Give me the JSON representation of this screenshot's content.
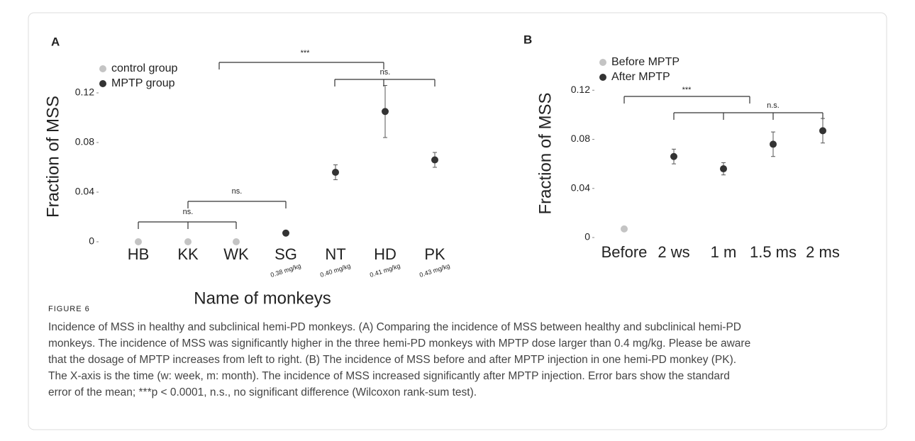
{
  "figure_label": "FIGURE 6",
  "caption": [
    "Incidence of MSS in healthy and subclinical hemi-PD monkeys. (A) Comparing the incidence of MSS between healthy and subclinical hemi-PD",
    "monkeys. The incidence of MSS was significantly higher in the three hemi-PD monkeys with MPTP dose larger than 0.4 mg/kg. Please be aware",
    "that the dosage of MPTP increases from left to right. (B) The incidence of MSS before and after MPTP injection in one hemi-PD monkey (PK).",
    "The X-axis is the time (w: week, m: month). The incidence of MSS increased significantly after MPTP injection. Error bars show the standard",
    "error of the mean; ***p < 0.0001, n.s., no significant difference (Wilcoxon rank-sum test)."
  ],
  "chart_data": [
    {
      "type": "scatter",
      "panel": "A",
      "y_label": "Fraction of MSS",
      "x_label": "Name of monkeys",
      "categories": [
        "HB",
        "KK",
        "WK",
        "SG",
        "NT",
        "HD",
        "PK"
      ],
      "dose_labels": [
        null,
        null,
        null,
        "0.38 mg/kg",
        "0.40 mg/kg",
        "0.41 mg/kg",
        "0.43 mg/kg"
      ],
      "series": [
        {
          "name": "control group",
          "color": "#c4c4c4",
          "values": [
            0,
            0,
            0,
            null,
            null,
            null,
            null
          ],
          "errors": [
            null,
            null,
            null,
            null,
            null,
            null,
            null
          ]
        },
        {
          "name": "MPTP group",
          "color": "#333333",
          "values": [
            null,
            null,
            null,
            0.007,
            0.056,
            0.105,
            0.066
          ],
          "errors": [
            null,
            null,
            null,
            0.001,
            0.006,
            0.021,
            0.006
          ]
        }
      ],
      "annotations": [
        "***",
        "ns.",
        "ns.",
        "ns."
      ],
      "ylim": [
        0,
        0.16
      ],
      "yticks": [
        0,
        0.04,
        0.08,
        0.12
      ],
      "legend": "upper left"
    },
    {
      "type": "scatter",
      "panel": "B",
      "y_label": "Fraction of MSS",
      "categories": [
        "Before",
        "2 ws",
        "1 m",
        "1.5 ms",
        "2 ms"
      ],
      "series": [
        {
          "name": "Before MPTP",
          "color": "#c4c4c4",
          "values": [
            0.007,
            null,
            null,
            null,
            null
          ],
          "errors": [
            0.001,
            null,
            null,
            null,
            null
          ]
        },
        {
          "name": "After MPTP",
          "color": "#333333",
          "values": [
            null,
            0.066,
            0.056,
            0.076,
            0.087
          ],
          "errors": [
            null,
            0.006,
            0.005,
            0.01,
            0.01
          ]
        }
      ],
      "annotations": [
        "***",
        "n.s."
      ],
      "ylim": [
        0,
        0.16
      ],
      "yticks": [
        0,
        0.04,
        0.08,
        0.12
      ],
      "legend": "upper left"
    }
  ]
}
